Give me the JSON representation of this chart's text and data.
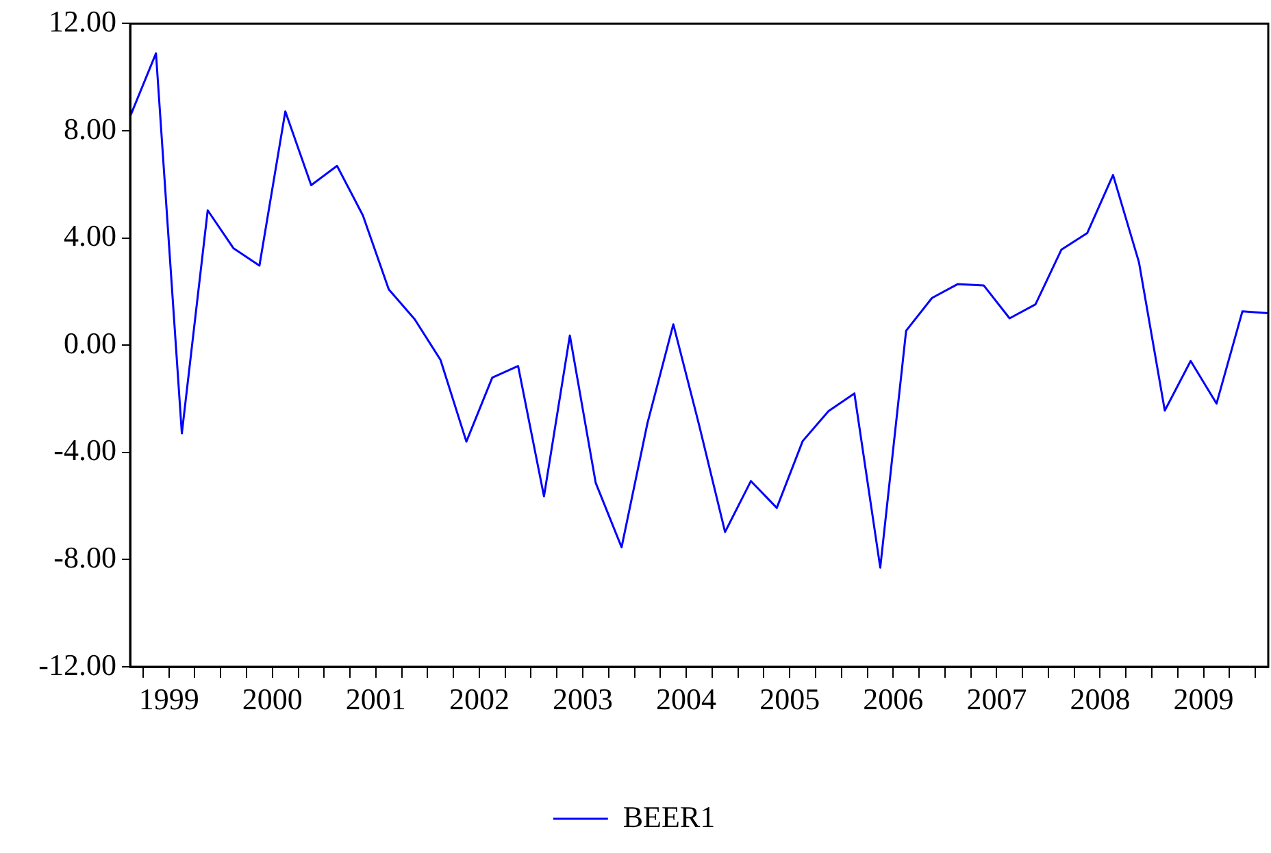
{
  "chart_data": {
    "type": "line",
    "legend": "bottom",
    "grid": false,
    "marker": "none",
    "line_style": "solid",
    "x": [
      1999.125,
      1999.375,
      1999.625,
      1999.875,
      2000.125,
      2000.375,
      2000.625,
      2000.875,
      2001.125,
      2001.375,
      2001.625,
      2001.875,
      2002.125,
      2002.375,
      2002.625,
      2002.875,
      2003.125,
      2003.375,
      2003.625,
      2003.875,
      2004.125,
      2004.375,
      2004.625,
      2004.875,
      2005.125,
      2005.375,
      2005.625,
      2005.875,
      2006.125,
      2006.375,
      2006.625,
      2006.875,
      2007.125,
      2007.375,
      2007.625,
      2007.875,
      2008.125,
      2008.375,
      2008.625,
      2008.875,
      2009.125,
      2009.375,
      2009.625,
      2009.875,
      2010.125
    ],
    "xlim": [
      1999.125,
      2010.125
    ],
    "xticks": [
      {
        "value": 1999.25,
        "label": null
      },
      {
        "value": 1999.5,
        "label": "1999"
      },
      {
        "value": 1999.75,
        "label": null
      },
      {
        "value": 2000,
        "label": null
      },
      {
        "value": 2000.25,
        "label": null
      },
      {
        "value": 2000.5,
        "label": "2000"
      },
      {
        "value": 2000.75,
        "label": null
      },
      {
        "value": 2001,
        "label": null
      },
      {
        "value": 2001.25,
        "label": null
      },
      {
        "value": 2001.5,
        "label": "2001"
      },
      {
        "value": 2001.75,
        "label": null
      },
      {
        "value": 2002,
        "label": null
      },
      {
        "value": 2002.25,
        "label": null
      },
      {
        "value": 2002.5,
        "label": "2002"
      },
      {
        "value": 2002.75,
        "label": null
      },
      {
        "value": 2003,
        "label": null
      },
      {
        "value": 2003.25,
        "label": null
      },
      {
        "value": 2003.5,
        "label": "2003"
      },
      {
        "value": 2003.75,
        "label": null
      },
      {
        "value": 2004,
        "label": null
      },
      {
        "value": 2004.25,
        "label": null
      },
      {
        "value": 2004.5,
        "label": "2004"
      },
      {
        "value": 2004.75,
        "label": null
      },
      {
        "value": 2005,
        "label": null
      },
      {
        "value": 2005.25,
        "label": null
      },
      {
        "value": 2005.5,
        "label": "2005"
      },
      {
        "value": 2005.75,
        "label": null
      },
      {
        "value": 2006,
        "label": null
      },
      {
        "value": 2006.25,
        "label": null
      },
      {
        "value": 2006.5,
        "label": "2006"
      },
      {
        "value": 2006.75,
        "label": null
      },
      {
        "value": 2007,
        "label": null
      },
      {
        "value": 2007.25,
        "label": null
      },
      {
        "value": 2007.5,
        "label": "2007"
      },
      {
        "value": 2007.75,
        "label": null
      },
      {
        "value": 2008,
        "label": null
      },
      {
        "value": 2008.25,
        "label": null
      },
      {
        "value": 2008.5,
        "label": "2008"
      },
      {
        "value": 2008.75,
        "label": null
      },
      {
        "value": 2009,
        "label": null
      },
      {
        "value": 2009.25,
        "label": null
      },
      {
        "value": 2009.5,
        "label": "2009"
      },
      {
        "value": 2009.75,
        "label": null
      },
      {
        "value": 2010,
        "label": null
      }
    ],
    "ylim": [
      -12,
      12
    ],
    "yticks": [
      {
        "value": -12,
        "label": "-12.00"
      },
      {
        "value": -8,
        "label": "-8.00"
      },
      {
        "value": -4,
        "label": "-4.00"
      },
      {
        "value": 0,
        "label": "0.00"
      },
      {
        "value": 4,
        "label": "4.00"
      },
      {
        "value": 8,
        "label": "8.00"
      },
      {
        "value": 12,
        "label": "12.00"
      }
    ],
    "series": [
      {
        "name": "BEER1",
        "color": "#0000ff",
        "values": [
          8.53,
          10.89,
          -3.29,
          5.03,
          3.61,
          2.97,
          8.72,
          5.97,
          6.69,
          4.84,
          2.08,
          0.97,
          -0.55,
          -3.6,
          -1.21,
          -0.78,
          -5.64,
          0.36,
          -5.14,
          -7.54,
          -2.91,
          0.78,
          -2.99,
          -6.97,
          -5.07,
          -6.07,
          -3.58,
          -2.46,
          -1.8,
          -8.3,
          0.54,
          1.76,
          2.28,
          2.23,
          1.0,
          1.52,
          3.56,
          4.18,
          6.35,
          3.1,
          -2.44,
          -0.59,
          -2.18,
          1.26,
          1.19
        ]
      }
    ]
  }
}
